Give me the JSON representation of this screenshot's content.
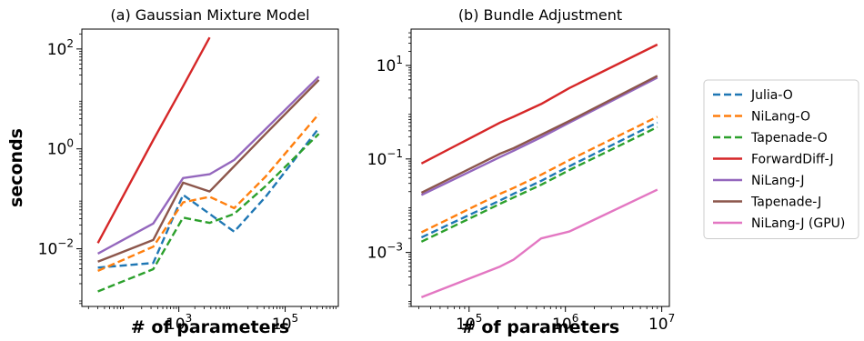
{
  "chart_data": [
    {
      "type": "line",
      "title": "(a) Gaussian Mixture Model",
      "xlabel": "# of parameters",
      "ylabel": "seconds",
      "xscale": "log",
      "yscale": "log",
      "xlim": [
        15,
        1000000
      ],
      "ylim": [
        0.0007,
        250
      ],
      "xticks": [
        {
          "value": 1000,
          "base": "10",
          "exp": "3"
        },
        {
          "value": 100000,
          "base": "10",
          "exp": "5"
        }
      ],
      "yticks": [
        {
          "value": 0.01,
          "base": "10",
          "exp": "−2"
        },
        {
          "value": 1,
          "base": "10",
          "exp": "0"
        },
        {
          "value": 100,
          "base": "10",
          "exp": "2"
        }
      ],
      "series": [
        {
          "name": "Julia-O",
          "color": "#1f77b4",
          "dash": true,
          "x": [
            30,
            330,
            1200,
            3800,
            11000,
            43000,
            430000
          ],
          "y": [
            0.0042,
            0.0052,
            0.12,
            0.05,
            0.022,
            0.11,
            2.6
          ]
        },
        {
          "name": "NiLang-O",
          "color": "#ff7f0e",
          "dash": true,
          "x": [
            30,
            330,
            1200,
            3800,
            11000,
            43000,
            430000
          ],
          "y": [
            0.0036,
            0.011,
            0.085,
            0.11,
            0.065,
            0.28,
            5.0
          ]
        },
        {
          "name": "Tapenade-O",
          "color": "#2ca02c",
          "dash": true,
          "x": [
            30,
            330,
            1200,
            3800,
            11000,
            43000,
            430000
          ],
          "y": [
            0.0014,
            0.0039,
            0.042,
            0.033,
            0.05,
            0.18,
            2.0
          ]
        },
        {
          "name": "ForwardDiff-J",
          "color": "#d62728",
          "dash": false,
          "x": [
            30,
            330,
            1200,
            3800
          ],
          "y": [
            0.013,
            1.5,
            18,
            170
          ]
        },
        {
          "name": "NiLang-J",
          "color": "#9467bd",
          "dash": false,
          "x": [
            30,
            330,
            1200,
            3800,
            11000,
            43000,
            430000
          ],
          "y": [
            0.008,
            0.032,
            0.26,
            0.31,
            0.6,
            2.5,
            28
          ]
        },
        {
          "name": "Tapenade-J",
          "color": "#8c564b",
          "dash": false,
          "x": [
            30,
            330,
            1200,
            3800,
            11000,
            43000,
            430000
          ],
          "y": [
            0.0055,
            0.015,
            0.21,
            0.14,
            0.45,
            2.0,
            24
          ]
        }
      ]
    },
    {
      "type": "line",
      "title": "(b) Bundle Adjustment",
      "xlabel": "# of parameters",
      "ylabel": "",
      "xscale": "log",
      "yscale": "log",
      "xlim": [
        25000,
        12000000
      ],
      "ylim": [
        7e-05,
        60
      ],
      "xticks": [
        {
          "value": 100000,
          "base": "10",
          "exp": "5"
        },
        {
          "value": 1000000,
          "base": "10",
          "exp": "6"
        },
        {
          "value": 10000000,
          "base": "10",
          "exp": "7"
        }
      ],
      "yticks": [
        {
          "value": 0.001,
          "base": "10",
          "exp": "−3"
        },
        {
          "value": 0.1,
          "base": "10",
          "exp": "−1"
        },
        {
          "value": 10,
          "base": "10",
          "exp": "1"
        }
      ],
      "series": [
        {
          "name": "Julia-O",
          "color": "#1f77b4",
          "dash": true,
          "x": [
            32000,
            210000,
            290000,
            560000,
            1100000,
            9000000
          ],
          "y": [
            0.0021,
            0.013,
            0.018,
            0.034,
            0.07,
            0.6
          ]
        },
        {
          "name": "NiLang-O",
          "color": "#ff7f0e",
          "dash": true,
          "x": [
            32000,
            210000,
            290000,
            560000,
            1100000,
            9000000
          ],
          "y": [
            0.0027,
            0.018,
            0.024,
            0.046,
            0.095,
            0.8
          ]
        },
        {
          "name": "Tapenade-O",
          "color": "#2ca02c",
          "dash": true,
          "x": [
            32000,
            210000,
            290000,
            560000,
            1100000,
            9000000
          ],
          "y": [
            0.0017,
            0.011,
            0.015,
            0.028,
            0.058,
            0.48
          ]
        },
        {
          "name": "ForwardDiff-J",
          "color": "#d62728",
          "dash": false,
          "x": [
            32000,
            210000,
            290000,
            560000,
            1100000,
            9000000
          ],
          "y": [
            0.08,
            0.6,
            0.8,
            1.5,
            3.3,
            28
          ]
        },
        {
          "name": "NiLang-J",
          "color": "#9467bd",
          "dash": false,
          "x": [
            32000,
            210000,
            290000,
            560000,
            1100000,
            9000000
          ],
          "y": [
            0.017,
            0.11,
            0.15,
            0.29,
            0.6,
            5.5
          ]
        },
        {
          "name": "Tapenade-J",
          "color": "#8c564b",
          "dash": false,
          "x": [
            32000,
            210000,
            290000,
            560000,
            1100000,
            9000000
          ],
          "y": [
            0.019,
            0.13,
            0.17,
            0.33,
            0.65,
            6.0
          ]
        },
        {
          "name": "NiLang-J (GPU)",
          "color": "#e377c2",
          "dash": false,
          "x": [
            32000,
            210000,
            290000,
            560000,
            1100000,
            9000000
          ],
          "y": [
            0.00011,
            0.0005,
            0.0007,
            0.002,
            0.0028,
            0.022
          ]
        }
      ]
    }
  ],
  "legend": {
    "placement": "right",
    "entries": [
      {
        "label": "Julia-O",
        "color": "#1f77b4",
        "dash": true
      },
      {
        "label": "NiLang-O",
        "color": "#ff7f0e",
        "dash": true
      },
      {
        "label": "Tapenade-O",
        "color": "#2ca02c",
        "dash": true
      },
      {
        "label": "ForwardDiff-J",
        "color": "#d62728",
        "dash": false
      },
      {
        "label": "NiLang-J",
        "color": "#9467bd",
        "dash": false
      },
      {
        "label": "Tapenade-J",
        "color": "#8c564b",
        "dash": false
      },
      {
        "label": "NiLang-J (GPU)",
        "color": "#e377c2",
        "dash": false
      }
    ]
  }
}
